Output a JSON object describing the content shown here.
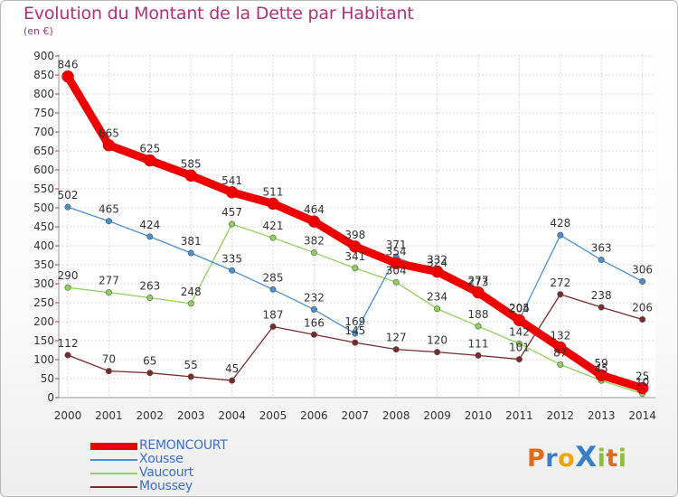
{
  "title": "Evolution du Montant de la Dette par Habitant",
  "subtitle": "(en €)",
  "logo": {
    "text": "ProXiti",
    "letters": [
      "P",
      "r",
      "o",
      "X",
      "i",
      "t",
      "i"
    ],
    "colors": [
      "#e06b1b",
      "#3a7ec4",
      "#f0a500",
      "#3a7ec4",
      "#8dbf3f",
      "#e06b1b",
      "#8dbf3f"
    ]
  },
  "chart_data": {
    "type": "line",
    "title": "Evolution du Montant de la Dette par Habitant",
    "ylabel": "(en €)",
    "xlabel": "",
    "x": [
      "2000",
      "2001",
      "2002",
      "2003",
      "2004",
      "2005",
      "2006",
      "2007",
      "2008",
      "2009",
      "2010",
      "2011",
      "2012",
      "2013",
      "2014"
    ],
    "ylim": [
      0,
      900
    ],
    "yticks": [
      "0",
      "50",
      "100",
      "150",
      "200",
      "250",
      "300",
      "350",
      "400",
      "450",
      "500",
      "550",
      "600",
      "650",
      "700",
      "750",
      "800",
      "850",
      "900"
    ],
    "grid": true,
    "legend_position": "bottom-left",
    "series": [
      {
        "name": "REMONCOURT",
        "color": "#ee0000",
        "values": [
          846,
          665,
          625,
          585,
          541,
          511,
          464,
          398,
          354,
          332,
          277,
          204,
          132,
          59,
          25
        ],
        "labels": [
          "846",
          "665",
          "625",
          "585",
          "541",
          "511",
          "464",
          "398",
          "354",
          "332",
          "277",
          "204",
          "132",
          "59",
          "25"
        ]
      },
      {
        "name": "Xousse",
        "color": "#4a8fd0",
        "values": [
          502,
          465,
          424,
          381,
          335,
          285,
          232,
          169,
          371,
          324,
          273,
          205,
          428,
          363,
          306
        ],
        "labels": [
          "502",
          "465",
          "424",
          "381",
          "335",
          "285",
          "232",
          "169",
          "371",
          "324",
          "273",
          "205",
          "428",
          "363",
          "306"
        ]
      },
      {
        "name": "Vaucourt",
        "color": "#8ed05a",
        "values": [
          290,
          277,
          263,
          248,
          457,
          421,
          382,
          341,
          304,
          234,
          188,
          142,
          87,
          45,
          10
        ],
        "labels": [
          "290",
          "277",
          "263",
          "248",
          "457",
          "421",
          "382",
          "341",
          "304",
          "234",
          "188",
          "142",
          "87",
          "45",
          "10"
        ]
      },
      {
        "name": "Moussey",
        "color": "#7a2a2a",
        "values": [
          112,
          70,
          65,
          55,
          45,
          187,
          166,
          145,
          127,
          120,
          111,
          101,
          272,
          238,
          206
        ],
        "labels": [
          "112",
          "70",
          "65",
          "55",
          "45",
          "187",
          "166",
          "145",
          "127",
          "120",
          "111",
          "101",
          "272",
          "238",
          "206"
        ]
      }
    ]
  }
}
